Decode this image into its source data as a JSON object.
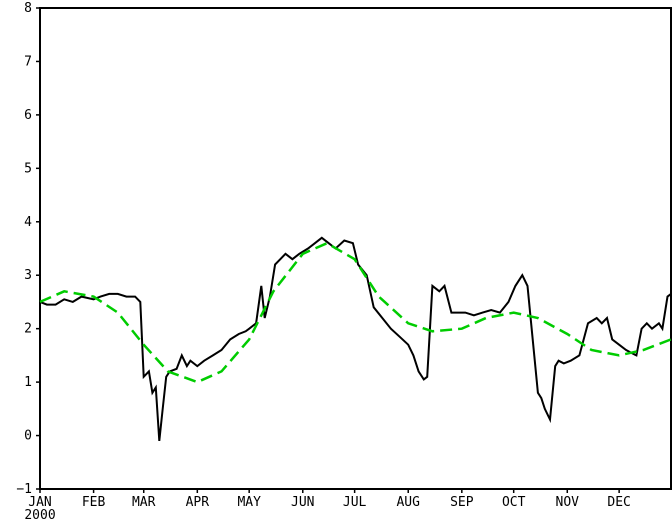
{
  "chart_data": {
    "type": "line",
    "title": "",
    "xlabel": "",
    "ylabel": "",
    "ylim": [
      -1,
      8
    ],
    "y_ticks": [
      -1,
      0,
      1,
      2,
      3,
      4,
      5,
      6,
      7,
      8
    ],
    "x_ticks": [
      "JAN",
      "FEB",
      "MAR",
      "APR",
      "MAY",
      "JUN",
      "JUL",
      "AUG",
      "SEP",
      "OCT",
      "NOV",
      "DEC"
    ],
    "x_year_label": "2000",
    "grid": false,
    "legend": "none",
    "series": [
      {
        "color": "#000000",
        "style": "solid",
        "x": [
          "2000-01-01",
          "2000-01-05",
          "2000-01-10",
          "2000-01-15",
          "2000-01-20",
          "2000-01-25",
          "2000-02-01",
          "2000-02-05",
          "2000-02-10",
          "2000-02-15",
          "2000-02-20",
          "2000-02-25",
          "2000-02-28",
          "2000-03-01",
          "2000-03-04",
          "2000-03-06",
          "2000-03-08",
          "2000-03-10",
          "2000-03-12",
          "2000-03-14",
          "2000-03-16",
          "2000-03-20",
          "2000-03-23",
          "2000-03-26",
          "2000-03-28",
          "2000-04-01",
          "2000-04-05",
          "2000-04-10",
          "2000-04-15",
          "2000-04-20",
          "2000-04-25",
          "2000-04-29",
          "2000-05-01",
          "2000-05-05",
          "2000-05-08",
          "2000-05-10",
          "2000-05-13",
          "2000-05-16",
          "2000-05-19",
          "2000-05-22",
          "2000-05-26",
          "2000-05-30",
          "2000-06-04",
          "2000-06-08",
          "2000-06-12",
          "2000-06-16",
          "2000-06-20",
          "2000-06-25",
          "2000-06-30",
          "2000-07-03",
          "2000-07-08",
          "2000-07-12",
          "2000-07-17",
          "2000-07-22",
          "2000-07-27",
          "2000-08-01",
          "2000-08-04",
          "2000-08-07",
          "2000-08-10",
          "2000-08-12",
          "2000-08-15",
          "2000-08-19",
          "2000-08-22",
          "2000-08-26",
          "2000-08-30",
          "2000-09-03",
          "2000-09-08",
          "2000-09-13",
          "2000-09-18",
          "2000-09-23",
          "2000-09-28",
          "2000-10-02",
          "2000-10-06",
          "2000-10-09",
          "2000-10-12",
          "2000-10-15",
          "2000-10-17",
          "2000-10-19",
          "2000-10-22",
          "2000-10-25",
          "2000-10-27",
          "2000-10-30",
          "2000-11-03",
          "2000-11-08",
          "2000-11-13",
          "2000-11-18",
          "2000-11-21",
          "2000-11-24",
          "2000-11-27",
          "2000-12-01",
          "2000-12-05",
          "2000-12-08",
          "2000-12-11",
          "2000-12-14",
          "2000-12-17",
          "2000-12-20",
          "2000-12-24",
          "2000-12-26",
          "2000-12-29",
          "2000-12-31"
        ],
        "y": [
          2.5,
          2.45,
          2.45,
          2.55,
          2.5,
          2.6,
          2.55,
          2.6,
          2.65,
          2.65,
          2.6,
          2.6,
          2.5,
          1.1,
          1.2,
          0.8,
          0.9,
          -0.1,
          0.5,
          1.1,
          1.2,
          1.25,
          1.5,
          1.3,
          1.4,
          1.3,
          1.4,
          1.5,
          1.6,
          1.8,
          1.9,
          1.95,
          2.0,
          2.1,
          2.8,
          2.2,
          2.6,
          3.2,
          3.3,
          3.4,
          3.3,
          3.4,
          3.5,
          3.6,
          3.7,
          3.6,
          3.5,
          3.65,
          3.6,
          3.2,
          3.0,
          2.4,
          2.2,
          2.0,
          1.85,
          1.7,
          1.5,
          1.2,
          1.05,
          1.1,
          2.8,
          2.7,
          2.8,
          2.3,
          2.3,
          2.3,
          2.25,
          2.3,
          2.35,
          2.3,
          2.5,
          2.8,
          3.0,
          2.8,
          1.8,
          0.8,
          0.7,
          0.5,
          0.3,
          1.3,
          1.4,
          1.35,
          1.4,
          1.5,
          2.1,
          2.2,
          2.1,
          2.2,
          1.8,
          1.7,
          1.6,
          1.55,
          1.5,
          2.0,
          2.1,
          2.0,
          2.1,
          2.0,
          2.6,
          2.65
        ]
      },
      {
        "color": "#00cc00",
        "style": "dashed",
        "x": [
          "2000-01-01",
          "2000-01-15",
          "2000-02-01",
          "2000-02-15",
          "2000-03-01",
          "2000-03-15",
          "2000-04-01",
          "2000-04-15",
          "2000-05-01",
          "2000-05-15",
          "2000-06-01",
          "2000-06-15",
          "2000-07-01",
          "2000-07-15",
          "2000-08-01",
          "2000-08-15",
          "2000-09-01",
          "2000-09-15",
          "2000-10-01",
          "2000-10-15",
          "2000-11-01",
          "2000-11-15",
          "2000-12-01",
          "2000-12-15",
          "2000-12-31"
        ],
        "y": [
          2.5,
          2.7,
          2.6,
          2.3,
          1.7,
          1.2,
          1.0,
          1.2,
          1.8,
          2.7,
          3.4,
          3.6,
          3.3,
          2.6,
          2.1,
          1.95,
          2.0,
          2.2,
          2.3,
          2.2,
          1.9,
          1.6,
          1.5,
          1.6,
          1.8
        ]
      }
    ]
  }
}
